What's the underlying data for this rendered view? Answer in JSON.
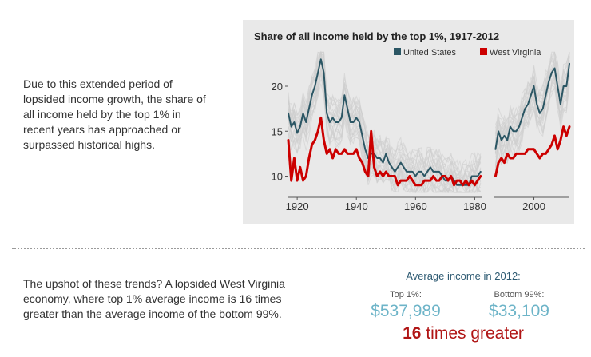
{
  "intro_text": "Due to this extended period of lopsided income growth, the share of all income held by the top 1% in recent years has approached or surpassed historical highs.",
  "upshot_text": "The upshot of these trends? A lopsided West Virginia economy, where top 1% average income is 16 times greater than the average income of the bottom 99%.",
  "stats": {
    "heading": "Average income in 2012:",
    "top_label": "Top 1%:",
    "top_value": "$537,989",
    "bottom_label": "Bottom 99%:",
    "bottom_value": "$33,109",
    "ratio_number": "16",
    "ratio_text": "times greater"
  },
  "colors": {
    "us": "#2b5664",
    "wv": "#cc0000",
    "states": "#cfcfcf",
    "panel": "#e9e9e9",
    "accent_value": "#6db4c8",
    "ratio": "#b01414"
  },
  "chart_data": {
    "type": "line",
    "title": "Share of all income held by the top 1%, 1917-2012",
    "xlabel": "",
    "ylabel": "",
    "xlim": [
      1917,
      2012
    ],
    "ylim": [
      8,
      24
    ],
    "xticks": [
      1920,
      1940,
      1960,
      1980,
      2000
    ],
    "yticks": [
      10,
      15,
      20
    ],
    "grid": false,
    "legend_position": "top",
    "gap_years": [
      1983,
      1984,
      1985,
      1986
    ],
    "series": [
      {
        "name": "United States",
        "color": "#2b5664",
        "x": [
          1917,
          1918,
          1919,
          1920,
          1921,
          1922,
          1923,
          1924,
          1925,
          1926,
          1927,
          1928,
          1929,
          1930,
          1931,
          1932,
          1933,
          1934,
          1935,
          1936,
          1937,
          1938,
          1939,
          1940,
          1941,
          1942,
          1943,
          1944,
          1945,
          1946,
          1947,
          1948,
          1949,
          1950,
          1951,
          1952,
          1953,
          1954,
          1955,
          1956,
          1957,
          1958,
          1959,
          1960,
          1961,
          1962,
          1963,
          1964,
          1965,
          1966,
          1967,
          1968,
          1969,
          1970,
          1971,
          1972,
          1973,
          1974,
          1975,
          1976,
          1977,
          1978,
          1979,
          1980,
          1981,
          1982,
          1987,
          1988,
          1989,
          1990,
          1991,
          1992,
          1993,
          1994,
          1995,
          1996,
          1997,
          1998,
          1999,
          2000,
          2001,
          2002,
          2003,
          2004,
          2005,
          2006,
          2007,
          2008,
          2009,
          2010,
          2011,
          2012
        ],
        "y": [
          17.0,
          15.5,
          16.0,
          14.8,
          15.5,
          17.0,
          16.0,
          17.5,
          19.0,
          20.0,
          21.5,
          23.0,
          21.5,
          17.0,
          16.0,
          16.5,
          16.0,
          16.0,
          16.5,
          19.0,
          17.5,
          16.0,
          16.0,
          16.5,
          16.0,
          14.5,
          13.0,
          12.0,
          12.5,
          12.5,
          12.0,
          12.0,
          11.5,
          12.5,
          11.5,
          11.0,
          10.5,
          11.0,
          11.5,
          11.0,
          10.5,
          10.5,
          10.5,
          10.0,
          10.5,
          10.5,
          10.0,
          10.5,
          11.0,
          10.5,
          10.5,
          10.5,
          10.0,
          9.5,
          9.5,
          10.0,
          9.5,
          9.0,
          9.0,
          9.0,
          9.0,
          9.0,
          10.0,
          10.0,
          10.0,
          10.5,
          13.0,
          15.0,
          14.0,
          14.5,
          14.0,
          15.5,
          15.0,
          15.0,
          15.5,
          16.5,
          17.5,
          18.0,
          19.0,
          20.0,
          18.0,
          17.0,
          17.5,
          19.0,
          20.5,
          21.5,
          22.0,
          20.0,
          18.0,
          20.0,
          20.0,
          22.5
        ]
      },
      {
        "name": "West Virginia",
        "color": "#cc0000",
        "x": [
          1917,
          1918,
          1919,
          1920,
          1921,
          1922,
          1923,
          1924,
          1925,
          1926,
          1927,
          1928,
          1929,
          1930,
          1931,
          1932,
          1933,
          1934,
          1935,
          1936,
          1937,
          1938,
          1939,
          1940,
          1941,
          1942,
          1943,
          1944,
          1945,
          1946,
          1947,
          1948,
          1949,
          1950,
          1951,
          1952,
          1953,
          1954,
          1955,
          1956,
          1957,
          1958,
          1959,
          1960,
          1961,
          1962,
          1963,
          1964,
          1965,
          1966,
          1967,
          1968,
          1969,
          1970,
          1971,
          1972,
          1973,
          1974,
          1975,
          1976,
          1977,
          1978,
          1979,
          1980,
          1981,
          1982,
          1987,
          1988,
          1989,
          1990,
          1991,
          1992,
          1993,
          1994,
          1995,
          1996,
          1997,
          1998,
          1999,
          2000,
          2001,
          2002,
          2003,
          2004,
          2005,
          2006,
          2007,
          2008,
          2009,
          2010,
          2011,
          2012
        ],
        "y": [
          14.0,
          9.5,
          12.0,
          9.5,
          11.0,
          9.5,
          10.0,
          12.0,
          13.5,
          14.0,
          15.0,
          16.5,
          14.0,
          12.5,
          13.0,
          12.0,
          13.0,
          12.5,
          12.5,
          13.0,
          12.5,
          12.5,
          12.5,
          13.0,
          12.0,
          11.5,
          10.5,
          10.0,
          15.0,
          11.0,
          10.0,
          10.5,
          10.0,
          10.5,
          10.0,
          10.0,
          10.0,
          9.0,
          9.5,
          9.5,
          9.5,
          10.0,
          9.5,
          9.0,
          9.0,
          9.0,
          9.5,
          9.5,
          9.5,
          10.0,
          9.5,
          9.5,
          10.0,
          10.0,
          9.5,
          10.0,
          9.0,
          9.5,
          9.5,
          9.0,
          9.5,
          9.0,
          9.5,
          9.0,
          9.5,
          10.0,
          10.0,
          11.5,
          12.0,
          11.5,
          12.5,
          12.0,
          12.0,
          12.5,
          12.5,
          12.5,
          12.5,
          13.0,
          13.0,
          13.0,
          12.5,
          12.0,
          12.5,
          12.5,
          13.0,
          13.5,
          14.5,
          13.0,
          14.0,
          15.5,
          14.5,
          15.5
        ]
      }
    ]
  }
}
